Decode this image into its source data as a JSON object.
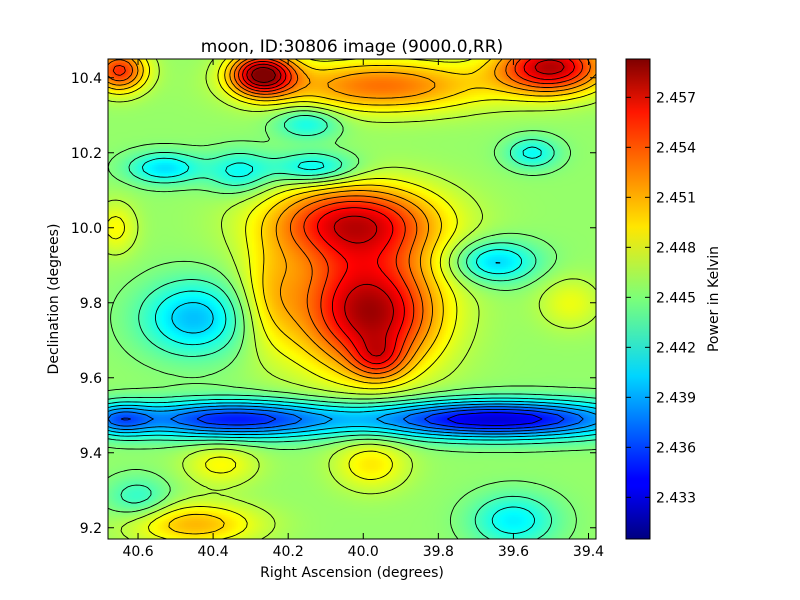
{
  "chart_data": {
    "type": "heatmap",
    "title": "moon, ID:30806 image (9000.0,RR)",
    "xlabel": "Right Ascension (degrees)",
    "ylabel": "Declination (degrees)",
    "colorbar_label": "Power in Kelvin",
    "colormap": "jet",
    "contours": true,
    "xlim": [
      40.68,
      39.38
    ],
    "ylim": [
      9.17,
      10.45
    ],
    "x_ticks": [
      40.6,
      40.4,
      40.2,
      40.0,
      39.8,
      39.6,
      39.4
    ],
    "x_tick_labels": [
      "40.6",
      "40.4",
      "40.2",
      "40.0",
      "39.8",
      "39.6",
      "39.4"
    ],
    "y_ticks": [
      9.2,
      9.4,
      9.6,
      9.8,
      10.0,
      10.2,
      10.4
    ],
    "y_tick_labels": [
      "9.2",
      "9.4",
      "9.6",
      "9.8",
      "10.0",
      "10.2",
      "10.4"
    ],
    "color_range": [
      2.4305,
      2.4593
    ],
    "colorbar_ticks": [
      2.433,
      2.436,
      2.439,
      2.442,
      2.445,
      2.448,
      2.451,
      2.454,
      2.457
    ],
    "colorbar_tick_labels": [
      "2.433",
      "2.436",
      "2.439",
      "2.442",
      "2.445",
      "2.448",
      "2.451",
      "2.454",
      "2.457"
    ],
    "baseline": 2.4455,
    "features": [
      {
        "ra": 40.03,
        "dec": 10.02,
        "sx": 0.16,
        "sy": 0.07,
        "amp": 0.0095
      },
      {
        "ra": 40.0,
        "dec": 9.8,
        "sx": 0.14,
        "sy": 0.13,
        "amp": 0.0105
      },
      {
        "ra": 39.96,
        "dec": 9.65,
        "sx": 0.05,
        "sy": 0.04,
        "amp": 0.0045
      },
      {
        "ra": 40.25,
        "dec": 9.82,
        "sx": 0.06,
        "sy": 0.1,
        "amp": 0.003
      },
      {
        "ra": 39.95,
        "dec": 9.75,
        "sx": 0.1,
        "sy": 0.08,
        "amp": 0.003
      },
      {
        "ra": 40.45,
        "dec": 9.76,
        "sx": 0.1,
        "sy": 0.07,
        "amp": -0.006
      },
      {
        "ra": 39.65,
        "dec": 9.91,
        "sx": 0.08,
        "sy": 0.04,
        "amp": -0.0055
      },
      {
        "ra": 40.35,
        "dec": 9.49,
        "sx": 0.2,
        "sy": 0.035,
        "amp": -0.0105
      },
      {
        "ra": 39.65,
        "dec": 9.49,
        "sx": 0.25,
        "sy": 0.035,
        "amp": -0.0125
      },
      {
        "ra": 40.65,
        "dec": 9.49,
        "sx": 0.06,
        "sy": 0.03,
        "amp": -0.006
      },
      {
        "ra": 40.53,
        "dec": 10.16,
        "sx": 0.07,
        "sy": 0.03,
        "amp": -0.005
      },
      {
        "ra": 40.13,
        "dec": 10.16,
        "sx": 0.08,
        "sy": 0.03,
        "amp": -0.005
      },
      {
        "ra": 40.33,
        "dec": 10.15,
        "sx": 0.06,
        "sy": 0.04,
        "amp": -0.004
      },
      {
        "ra": 39.55,
        "dec": 10.2,
        "sx": 0.05,
        "sy": 0.03,
        "amp": -0.004
      },
      {
        "ra": 40.15,
        "dec": 10.28,
        "sx": 0.06,
        "sy": 0.03,
        "amp": -0.004
      },
      {
        "ra": 40.27,
        "dec": 10.41,
        "sx": 0.06,
        "sy": 0.04,
        "amp": 0.013
      },
      {
        "ra": 39.5,
        "dec": 10.43,
        "sx": 0.1,
        "sy": 0.05,
        "amp": 0.012
      },
      {
        "ra": 40.65,
        "dec": 10.42,
        "sx": 0.05,
        "sy": 0.04,
        "amp": 0.009
      },
      {
        "ra": 39.95,
        "dec": 10.38,
        "sx": 0.2,
        "sy": 0.05,
        "amp": 0.007
      },
      {
        "ra": 39.98,
        "dec": 9.37,
        "sx": 0.07,
        "sy": 0.05,
        "amp": 0.0035
      },
      {
        "ra": 40.38,
        "dec": 9.37,
        "sx": 0.07,
        "sy": 0.04,
        "amp": 0.003
      },
      {
        "ra": 40.45,
        "dec": 9.21,
        "sx": 0.12,
        "sy": 0.04,
        "amp": 0.005
      },
      {
        "ra": 39.6,
        "dec": 9.22,
        "sx": 0.08,
        "sy": 0.05,
        "amp": -0.0045
      },
      {
        "ra": 40.6,
        "dec": 9.28,
        "sx": 0.06,
        "sy": 0.04,
        "amp": -0.003
      },
      {
        "ra": 39.45,
        "dec": 9.8,
        "sx": 0.06,
        "sy": 0.05,
        "amp": 0.0025
      },
      {
        "ra": 40.66,
        "dec": 10.0,
        "sx": 0.04,
        "sy": 0.05,
        "amp": 0.003
      }
    ]
  }
}
